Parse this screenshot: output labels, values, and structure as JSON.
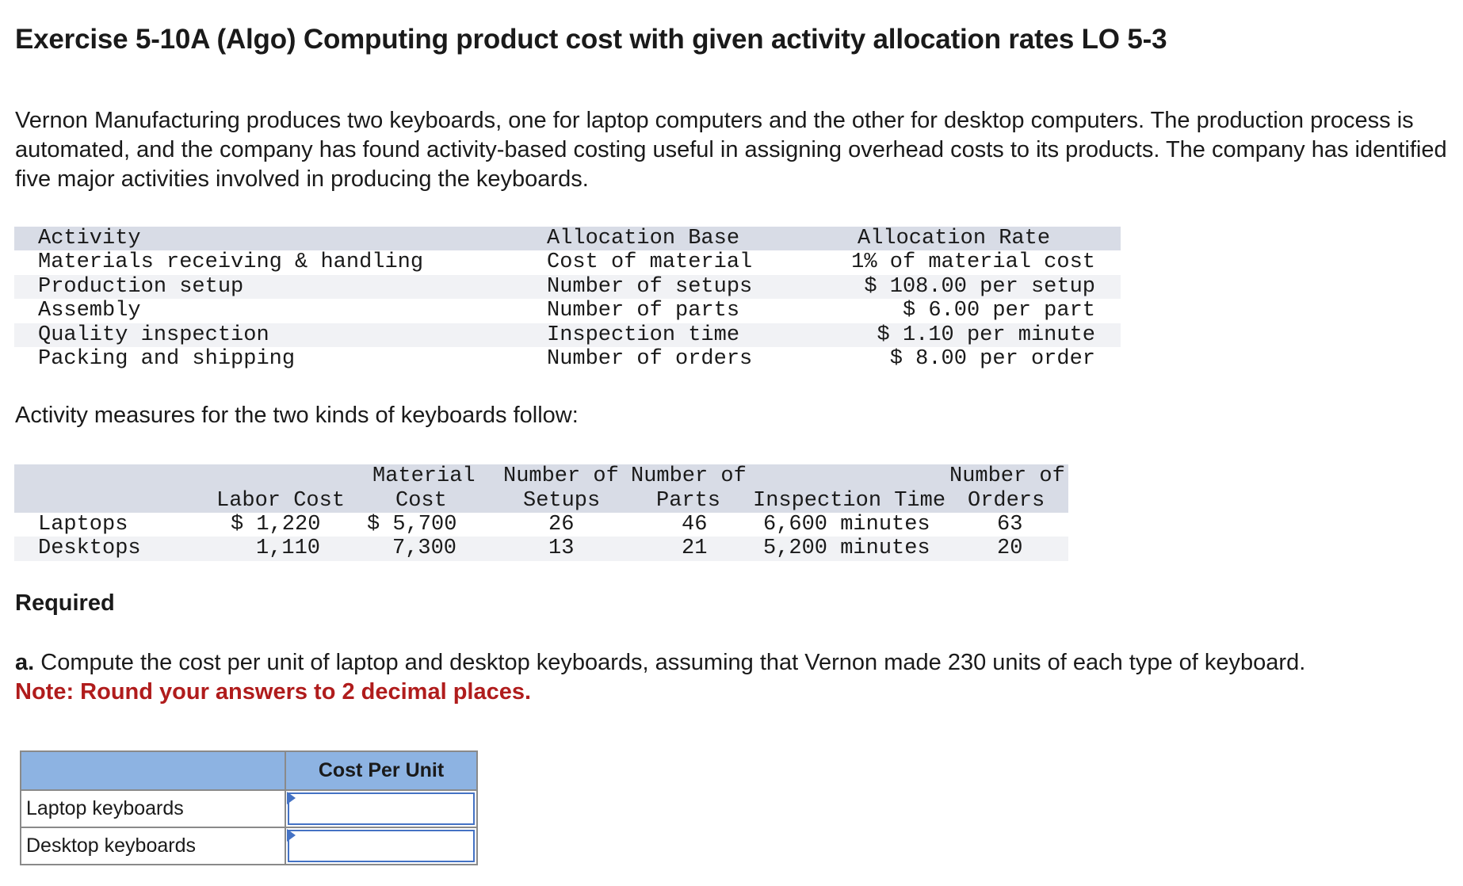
{
  "title": "Exercise 5-10A (Algo) Computing product cost with given activity allocation rates LO 5-3",
  "intro": "Vernon Manufacturing produces two keyboards, one for laptop computers and the other for desktop computers. The production process is automated, and the company has found activity-based costing useful in assigning overhead costs to its products. The company has identified five major activities involved in producing the keyboards.",
  "rate_table": {
    "headers": [
      "Activity",
      "Allocation Base",
      "Allocation Rate"
    ],
    "rows": [
      [
        "Materials receiving & handling",
        "Cost of material",
        "1% of material cost"
      ],
      [
        "Production setup",
        "Number of setups",
        "$ 108.00 per setup"
      ],
      [
        "Assembly",
        "Number of parts",
        "$ 6.00 per part"
      ],
      [
        "Quality inspection",
        "Inspection time",
        "$ 1.10 per minute"
      ],
      [
        "Packing and shipping",
        "Number of orders",
        "$ 8.00 per order"
      ]
    ]
  },
  "measures_intro": "Activity measures for the two kinds of keyboards follow:",
  "measures_table": {
    "headers": {
      "labor": "Labor Cost",
      "material_1": "Material",
      "material_2": "Cost",
      "setups_1": "Number of",
      "setups_2": "Setups",
      "parts_1": "Number of",
      "parts_2": "Parts",
      "inspection": "Inspection Time",
      "orders_1": "Number of",
      "orders_2": "Orders"
    },
    "rows": [
      {
        "label": "Laptops",
        "labor": "$ 1,220",
        "material": "$ 5,700",
        "setups": "26",
        "parts": "46",
        "inspection": "6,600 minutes",
        "orders": "63"
      },
      {
        "label": "Desktops",
        "labor": "1,110",
        "material": "7,300",
        "setups": "13",
        "parts": "21",
        "inspection": "5,200 minutes",
        "orders": "20"
      }
    ]
  },
  "required_label": "Required",
  "question": {
    "lead": "a.",
    "text": " Compute the cost per unit of laptop and desktop keyboards, assuming that Vernon made 230 units of each type of keyboard.",
    "note": "Note: Round your answers to 2 decimal places."
  },
  "answer_table": {
    "header": "Cost Per Unit",
    "rows": [
      {
        "label": "Laptop keyboards",
        "value": ""
      },
      {
        "label": "Desktop keyboards",
        "value": ""
      }
    ]
  },
  "colors": {
    "header_fill": "#d8dce6",
    "answer_header_fill": "#8db3e2",
    "note_red": "#b01c1c",
    "input_border": "#4472c4"
  }
}
